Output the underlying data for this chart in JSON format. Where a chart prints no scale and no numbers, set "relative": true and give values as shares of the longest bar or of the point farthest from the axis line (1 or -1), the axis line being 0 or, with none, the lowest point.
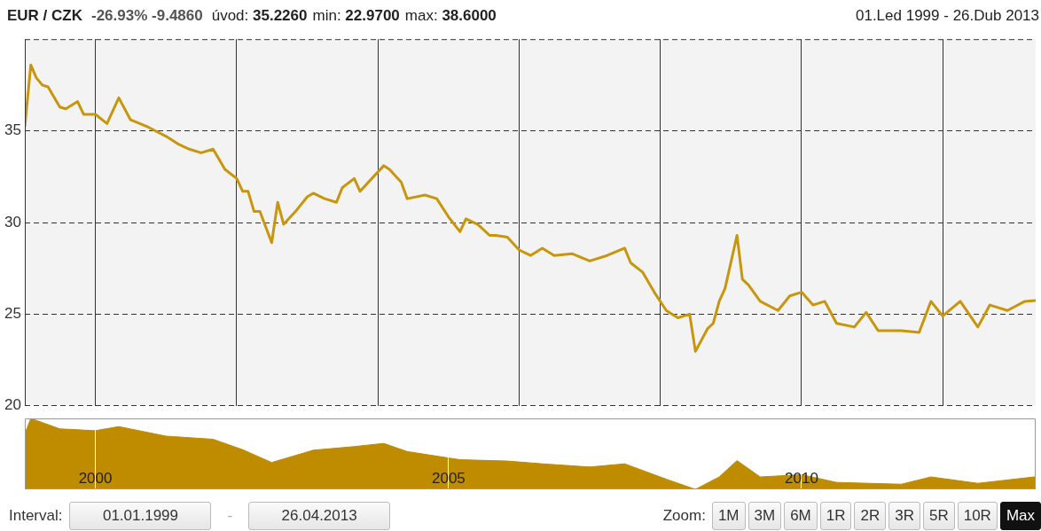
{
  "chart_data": [
    {
      "type": "line",
      "title": "EUR / CZK",
      "annotations": [
        "-26.93% -9.4860",
        "úvod: 35.2260",
        "min: 22.9700",
        "max: 38.6000",
        "01.Led 1999 - 26.Dub 2013"
      ],
      "x": [
        "1999-01",
        "1999-02",
        "1999-03",
        "1999-04",
        "1999-05",
        "1999-07",
        "1999-08",
        "1999-10",
        "1999-11",
        "2000-01",
        "2000-03",
        "2000-05",
        "2000-07",
        "2000-10",
        "2001-01",
        "2001-03",
        "2001-05",
        "2001-07",
        "2001-09",
        "2001-11",
        "2002-01",
        "2002-02",
        "2002-03",
        "2002-04",
        "2002-05",
        "2002-07",
        "2002-08",
        "2002-09",
        "2002-11",
        "2003-01",
        "2003-02",
        "2003-04",
        "2003-06",
        "2003-07",
        "2003-09",
        "2003-10",
        "2003-12",
        "2004-02",
        "2004-03",
        "2004-05",
        "2004-06",
        "2004-09",
        "2004-11",
        "2005-01",
        "2005-03",
        "2005-04",
        "2005-06",
        "2005-08",
        "2005-09",
        "2005-11",
        "2006-01",
        "2006-03",
        "2006-05",
        "2006-07",
        "2006-10",
        "2007-01",
        "2007-04",
        "2007-07",
        "2007-08",
        "2007-10",
        "2007-12",
        "2008-02",
        "2008-04",
        "2008-06",
        "2008-07",
        "2008-09",
        "2008-10",
        "2008-11",
        "2008-12",
        "2009-02",
        "2009-03",
        "2009-04",
        "2009-06",
        "2009-09",
        "2009-11",
        "2010-01",
        "2010-03",
        "2010-05",
        "2010-07",
        "2010-10",
        "2010-12",
        "2011-02",
        "2011-06",
        "2011-09",
        "2011-11",
        "2012-01",
        "2012-04",
        "2012-07",
        "2012-09",
        "2012-12",
        "2013-03",
        "2013-04-26"
      ],
      "series": [
        {
          "color": "#c8960c",
          "values": [
            35.23,
            38.6,
            37.9,
            37.5,
            37.4,
            36.3,
            36.2,
            36.6,
            35.9,
            35.9,
            35.4,
            36.8,
            35.6,
            35.2,
            34.7,
            34.3,
            34.0,
            33.8,
            34.0,
            32.9,
            32.4,
            31.7,
            31.7,
            30.6,
            30.6,
            28.9,
            31.1,
            29.9,
            30.6,
            31.4,
            31.6,
            31.3,
            31.1,
            31.9,
            32.4,
            31.7,
            32.4,
            33.1,
            32.9,
            32.2,
            31.3,
            31.5,
            31.3,
            30.3,
            29.5,
            30.2,
            29.9,
            29.3,
            29.3,
            29.2,
            28.5,
            28.2,
            28.6,
            28.2,
            28.3,
            27.9,
            28.2,
            28.6,
            27.8,
            27.3,
            26.2,
            25.2,
            24.8,
            25.0,
            22.97,
            24.2,
            24.5,
            25.7,
            26.4,
            29.3,
            26.9,
            26.6,
            25.7,
            25.2,
            26.0,
            26.2,
            25.5,
            25.7,
            24.5,
            24.3,
            25.1,
            24.1,
            24.1,
            24.0,
            25.7,
            24.9,
            25.7,
            24.3,
            25.5,
            25.2,
            25.7,
            25.74
          ]
        }
      ],
      "xlim": [
        "1999-01-01",
        "2013-04-26"
      ],
      "xticks": [
        {
          "value": "2000",
          "label": null
        },
        {
          "value": "2002",
          "label": null
        },
        {
          "value": "2004",
          "label": null
        },
        {
          "value": "2006",
          "label": null
        },
        {
          "value": "2008",
          "label": null
        },
        {
          "value": "2010",
          "label": null
        },
        {
          "value": "2012",
          "label": null
        }
      ],
      "ylim": [
        20,
        40
      ],
      "yticks": [
        20,
        25,
        30,
        35
      ],
      "tick_labels": "y",
      "grid": true,
      "legend": false,
      "marker": "none",
      "line_style": "solid"
    },
    {
      "type": "area",
      "relative": true,
      "annotations": [
        "Interval:",
        "01.01.1999",
        "-",
        "26.04.2013",
        "Zoom:",
        "1M",
        "3M",
        "6M",
        "1R",
        "2R",
        "3R",
        "5R",
        "10R",
        "Max"
      ],
      "x": [
        "1999-01",
        "1999-02",
        "1999-07",
        "2000-01",
        "2000-05",
        "2001-01",
        "2001-09",
        "2002-02",
        "2002-07",
        "2003-02",
        "2003-09",
        "2004-02",
        "2004-06",
        "2005-03",
        "2005-11",
        "2006-05",
        "2007-01",
        "2007-07",
        "2008-02",
        "2008-07",
        "2008-11",
        "2009-02",
        "2009-06",
        "2010-01",
        "2010-07",
        "2011-06",
        "2011-11",
        "2012-07",
        "2013-04-26"
      ],
      "series": [
        {
          "color": "#bf8c00",
          "values": [
            0.784,
            1,
            0.853,
            0.827,
            0.885,
            0.75,
            0.706,
            0.559,
            0.379,
            0.552,
            0.603,
            0.648,
            0.533,
            0.418,
            0.399,
            0.36,
            0.315,
            0.36,
            0.143,
            0,
            0.175,
            0.405,
            0.175,
            0.207,
            0.098,
            0.072,
            0.175,
            0.085,
            0.177
          ]
        }
      ],
      "xlim": [
        "1999-01-01",
        "2013-04-26"
      ],
      "xticks": [
        {
          "value": "2000",
          "label": "2000"
        },
        {
          "value": "2005",
          "label": "2005"
        },
        {
          "value": "2010",
          "label": "2010"
        }
      ],
      "tick_labels": "x",
      "grid": "x",
      "legend": false
    }
  ]
}
